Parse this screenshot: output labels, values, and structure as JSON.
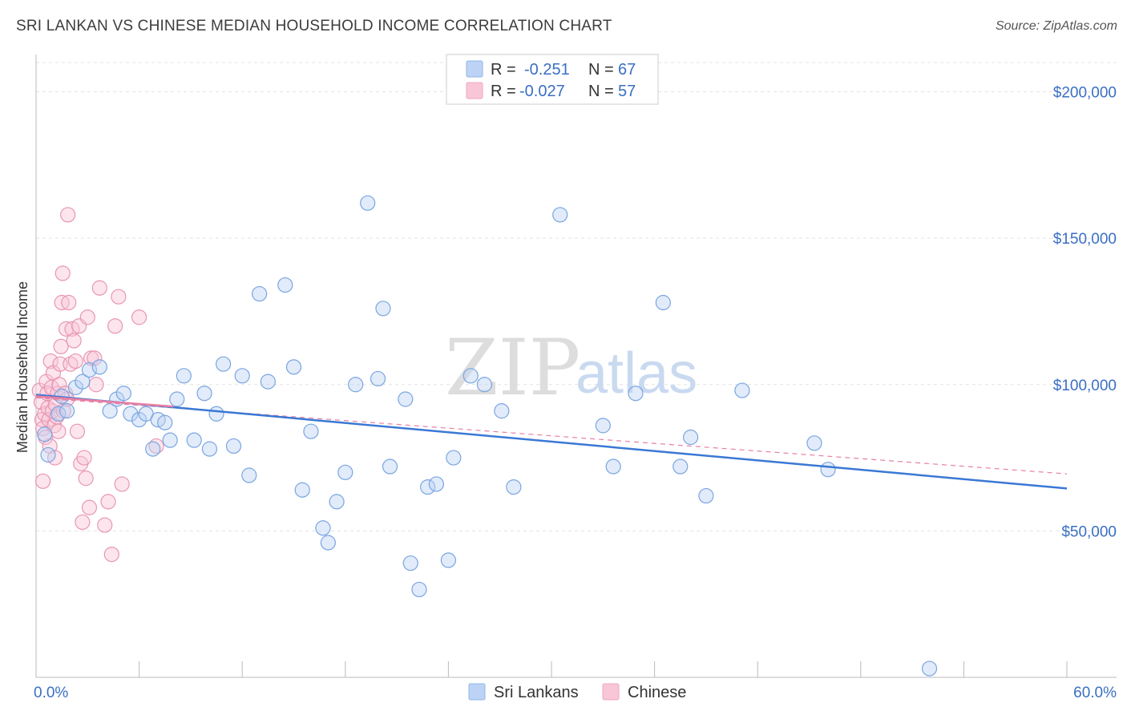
{
  "title": "SRI LANKAN VS CHINESE MEDIAN HOUSEHOLD INCOME CORRELATION CHART",
  "source": "Source: ZipAtlas.com",
  "watermark": {
    "zip": "ZIP",
    "atlas": "atlas"
  },
  "legend": {
    "rows": [
      {
        "r_label": "R =",
        "r_value": "-0.251",
        "n_label": "N =",
        "n_value": "67",
        "color": "#8fb4ea"
      },
      {
        "r_label": "R =",
        "r_value": "-0.027",
        "n_label": "N =",
        "n_value": "57",
        "color": "#f2a7c0"
      }
    ]
  },
  "bottom_legend": [
    {
      "label": "Sri Lankans",
      "color": "#8fb4ea"
    },
    {
      "label": "Chinese",
      "color": "#f2a7c0"
    }
  ],
  "chart_data": {
    "type": "scatter",
    "xlabel": "",
    "ylabel": "Median Household Income",
    "xlim": [
      0,
      60
    ],
    "ylim": [
      0,
      210000
    ],
    "x_tick_labels": [
      "0.0%",
      "60.0%"
    ],
    "y_ticks": [
      50000,
      100000,
      150000,
      200000
    ],
    "y_tick_labels": [
      "$50,000",
      "$100,000",
      "$150,000",
      "$200,000"
    ],
    "grid": true,
    "colors": {
      "sri_lankans": "#3a78d4",
      "chinese": "#e87fa4"
    },
    "series": [
      {
        "name": "Sri Lankans",
        "trend": {
          "x": [
            0,
            60
          ],
          "y": [
            96500,
            64500
          ],
          "style": "solid"
        },
        "points": [
          [
            0.5,
            83000
          ],
          [
            0.7,
            76000
          ],
          [
            1.3,
            90000
          ],
          [
            1.5,
            96000
          ],
          [
            1.8,
            91000
          ],
          [
            2.3,
            99000
          ],
          [
            2.7,
            101000
          ],
          [
            3.1,
            105000
          ],
          [
            3.7,
            106000
          ],
          [
            4.3,
            91000
          ],
          [
            4.7,
            95000
          ],
          [
            5.1,
            97000
          ],
          [
            5.5,
            90000
          ],
          [
            6.0,
            88000
          ],
          [
            6.4,
            90000
          ],
          [
            6.8,
            78000
          ],
          [
            7.1,
            88000
          ],
          [
            7.5,
            87000
          ],
          [
            7.8,
            81000
          ],
          [
            8.2,
            95000
          ],
          [
            8.6,
            103000
          ],
          [
            9.2,
            81000
          ],
          [
            9.8,
            97000
          ],
          [
            10.1,
            78000
          ],
          [
            10.5,
            90000
          ],
          [
            10.9,
            107000
          ],
          [
            11.5,
            79000
          ],
          [
            12.0,
            103000
          ],
          [
            12.4,
            69000
          ],
          [
            13.0,
            131000
          ],
          [
            13.5,
            101000
          ],
          [
            14.5,
            134000
          ],
          [
            15.0,
            106000
          ],
          [
            15.5,
            64000
          ],
          [
            16.0,
            84000
          ],
          [
            16.7,
            51000
          ],
          [
            17.0,
            46000
          ],
          [
            17.5,
            60000
          ],
          [
            18.0,
            70000
          ],
          [
            18.6,
            100000
          ],
          [
            19.3,
            162000
          ],
          [
            19.9,
            102000
          ],
          [
            20.2,
            126000
          ],
          [
            20.6,
            72000
          ],
          [
            21.5,
            95000
          ],
          [
            21.8,
            39000
          ],
          [
            22.3,
            30000
          ],
          [
            22.8,
            65000
          ],
          [
            23.3,
            66000
          ],
          [
            24.0,
            40000
          ],
          [
            24.3,
            75000
          ],
          [
            25.3,
            103000
          ],
          [
            26.1,
            100000
          ],
          [
            27.1,
            91000
          ],
          [
            27.8,
            65000
          ],
          [
            30.5,
            158000
          ],
          [
            33.0,
            86000
          ],
          [
            33.6,
            72000
          ],
          [
            34.9,
            97000
          ],
          [
            36.5,
            128000
          ],
          [
            37.5,
            72000
          ],
          [
            38.1,
            82000
          ],
          [
            39.0,
            62000
          ],
          [
            41.1,
            98000
          ],
          [
            45.3,
            80000
          ],
          [
            46.1,
            71000
          ],
          [
            52.0,
            3000
          ]
        ]
      },
      {
        "name": "Chinese",
        "trend": {
          "x": [
            0,
            8
          ],
          "y": [
            96000,
            92500
          ],
          "style": "solid"
        },
        "trend_extended": {
          "x": [
            0,
            60
          ],
          "y": [
            95500,
            69500
          ],
          "style": "dashed"
        },
        "points": [
          [
            0.2,
            98000
          ],
          [
            0.3,
            94000
          ],
          [
            0.35,
            88000
          ],
          [
            0.4,
            85000
          ],
          [
            0.5,
            90000
          ],
          [
            0.55,
            82000
          ],
          [
            0.6,
            101000
          ],
          [
            0.65,
            97000
          ],
          [
            0.7,
            92000
          ],
          [
            0.75,
            88000
          ],
          [
            0.8,
            79000
          ],
          [
            0.85,
            108000
          ],
          [
            0.9,
            99000
          ],
          [
            0.95,
            91000
          ],
          [
            1.0,
            104000
          ],
          [
            1.05,
            86000
          ],
          [
            1.1,
            75000
          ],
          [
            1.15,
            93000
          ],
          [
            1.2,
            89000
          ],
          [
            1.25,
            97000
          ],
          [
            1.3,
            84000
          ],
          [
            1.35,
            100000
          ],
          [
            1.4,
            107000
          ],
          [
            1.45,
            113000
          ],
          [
            1.5,
            128000
          ],
          [
            1.55,
            138000
          ],
          [
            1.6,
            91000
          ],
          [
            1.7,
            97000
          ],
          [
            1.75,
            119000
          ],
          [
            1.8,
            95000
          ],
          [
            1.9,
            128000
          ],
          [
            2.0,
            107000
          ],
          [
            2.1,
            119000
          ],
          [
            2.2,
            115000
          ],
          [
            2.3,
            108000
          ],
          [
            2.4,
            84000
          ],
          [
            2.5,
            120000
          ],
          [
            2.6,
            73000
          ],
          [
            2.7,
            53000
          ],
          [
            2.8,
            75000
          ],
          [
            2.9,
            68000
          ],
          [
            3.0,
            123000
          ],
          [
            3.1,
            58000
          ],
          [
            3.2,
            109000
          ],
          [
            3.4,
            109000
          ],
          [
            3.5,
            100000
          ],
          [
            3.7,
            133000
          ],
          [
            4.0,
            52000
          ],
          [
            4.2,
            60000
          ],
          [
            4.4,
            42000
          ],
          [
            4.6,
            120000
          ],
          [
            4.8,
            130000
          ],
          [
            5.0,
            66000
          ],
          [
            6.0,
            123000
          ],
          [
            7.0,
            79000
          ],
          [
            0.4,
            67000
          ],
          [
            1.85,
            158000
          ]
        ]
      }
    ]
  }
}
